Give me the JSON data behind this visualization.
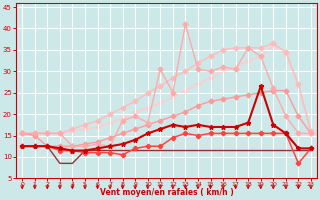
{
  "bg_color": "#cce8e8",
  "grid_color": "#ffffff",
  "xlabel": "Vent moyen/en rafales ( km/h )",
  "xlabel_color": "#cc0000",
  "xlim": [
    -0.5,
    23.5
  ],
  "ylim": [
    5,
    46
  ],
  "yticks": [
    5,
    10,
    15,
    20,
    25,
    30,
    35,
    40,
    45
  ],
  "xticks": [
    0,
    1,
    2,
    3,
    4,
    5,
    6,
    7,
    8,
    9,
    10,
    11,
    12,
    13,
    14,
    15,
    16,
    17,
    18,
    19,
    20,
    21,
    22,
    23
  ],
  "lines": [
    {
      "x": [
        0,
        1,
        2,
        3,
        4,
        5,
        6,
        7,
        8,
        9,
        10,
        11,
        12,
        13,
        14,
        15,
        16,
        17,
        18,
        19,
        20,
        21,
        22,
        23
      ],
      "y": [
        15.5,
        15.5,
        15.5,
        15.5,
        16.0,
        16.5,
        17.0,
        18.0,
        19.0,
        20.5,
        21.5,
        22.5,
        24.0,
        25.5,
        27.0,
        28.5,
        30.0,
        31.0,
        32.5,
        33.5,
        36.0,
        34.0,
        26.5,
        15.5
      ],
      "color": "#ffcccc",
      "lw": 1.0,
      "marker": "D",
      "ms": 2.5,
      "zorder": 1
    },
    {
      "x": [
        0,
        1,
        2,
        3,
        4,
        5,
        6,
        7,
        8,
        9,
        10,
        11,
        12,
        13,
        14,
        15,
        16,
        17,
        18,
        19,
        20,
        21,
        22,
        23
      ],
      "y": [
        15.5,
        15.5,
        15.5,
        15.5,
        16.5,
        17.5,
        18.5,
        20.0,
        21.5,
        23.0,
        25.0,
        26.5,
        28.5,
        30.0,
        32.0,
        33.5,
        35.0,
        35.5,
        35.5,
        35.5,
        36.5,
        34.5,
        27.0,
        16.0
      ],
      "color": "#ffbbbb",
      "lw": 1.0,
      "marker": "D",
      "ms": 2.5,
      "zorder": 2
    },
    {
      "x": [
        0,
        1,
        2,
        3,
        4,
        5,
        6,
        7,
        8,
        9,
        10,
        11,
        12,
        13,
        14,
        15,
        16,
        17,
        18,
        19,
        20,
        21,
        22,
        23
      ],
      "y": [
        15.5,
        15.5,
        15.5,
        15.5,
        12.5,
        12.5,
        13.0,
        12.5,
        18.5,
        19.5,
        18.0,
        30.5,
        25.0,
        41.0,
        30.5,
        30.0,
        31.0,
        30.5,
        35.5,
        33.5,
        26.0,
        19.5,
        15.5,
        15.5
      ],
      "color": "#ffaaaa",
      "lw": 1.0,
      "marker": "D",
      "ms": 2.5,
      "zorder": 3
    },
    {
      "x": [
        0,
        1,
        2,
        3,
        4,
        5,
        6,
        7,
        8,
        9,
        10,
        11,
        12,
        13,
        14,
        15,
        16,
        17,
        18,
        19,
        20,
        21,
        22,
        23
      ],
      "y": [
        15.5,
        15.0,
        12.5,
        12.5,
        12.5,
        13.0,
        13.5,
        14.5,
        15.5,
        16.5,
        17.5,
        18.5,
        19.5,
        20.5,
        22.0,
        23.0,
        23.5,
        24.0,
        24.5,
        25.0,
        25.5,
        25.5,
        19.5,
        15.5
      ],
      "color": "#ff9999",
      "lw": 1.0,
      "marker": "D",
      "ms": 2.5,
      "zorder": 2
    },
    {
      "x": [
        0,
        1,
        2,
        3,
        4,
        5,
        6,
        7,
        8,
        9,
        10,
        11,
        12,
        13,
        14,
        15,
        16,
        17,
        18,
        19,
        20,
        21,
        22,
        23
      ],
      "y": [
        12.5,
        12.5,
        12.5,
        12.0,
        11.5,
        11.5,
        12.0,
        12.5,
        13.0,
        14.0,
        15.5,
        16.5,
        17.5,
        17.0,
        17.5,
        17.0,
        17.0,
        17.0,
        18.0,
        26.5,
        17.5,
        15.5,
        12.0,
        12.0
      ],
      "color": "#cc0000",
      "lw": 1.5,
      "marker": "*",
      "ms": 3.5,
      "zorder": 6
    },
    {
      "x": [
        0,
        1,
        2,
        3,
        4,
        5,
        6,
        7,
        8,
        9,
        10,
        11,
        12,
        13,
        14,
        15,
        16,
        17,
        18,
        19,
        20,
        21,
        22,
        23
      ],
      "y": [
        12.5,
        12.5,
        12.5,
        11.5,
        11.5,
        11.0,
        11.0,
        11.0,
        10.5,
        12.0,
        12.5,
        12.5,
        14.5,
        15.5,
        15.0,
        15.5,
        15.5,
        15.5,
        15.5,
        15.5,
        15.5,
        15.5,
        8.5,
        12.0
      ],
      "color": "#ff4444",
      "lw": 1.1,
      "marker": "P",
      "ms": 3.0,
      "zorder": 5
    },
    {
      "x": [
        0,
        1,
        2,
        3,
        4,
        5,
        6,
        7,
        8,
        9,
        10,
        11,
        12,
        13,
        14,
        15,
        16,
        17,
        18,
        19,
        20,
        21,
        22,
        23
      ],
      "y": [
        12.5,
        12.5,
        12.5,
        8.5,
        8.5,
        11.5,
        11.5,
        11.5,
        11.5,
        11.5,
        11.5,
        11.5,
        11.5,
        11.5,
        11.5,
        11.5,
        11.5,
        11.5,
        11.5,
        11.5,
        11.5,
        11.5,
        11.5,
        11.5
      ],
      "color": "#993333",
      "lw": 1.0,
      "marker": null,
      "ms": 0,
      "zorder": 4
    }
  ],
  "arrow_color": "#cc0000"
}
